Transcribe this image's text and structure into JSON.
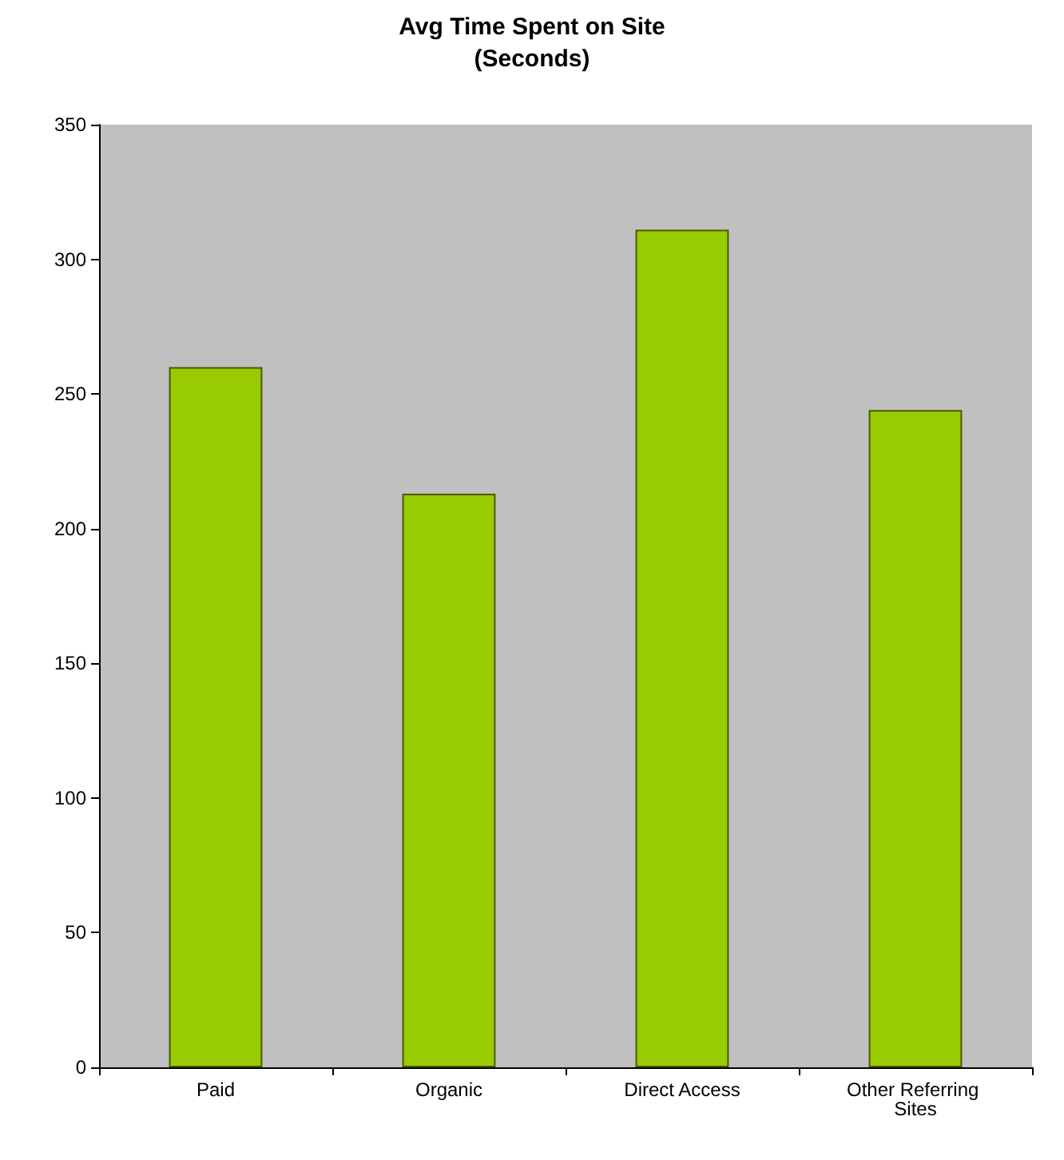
{
  "chart_data": {
    "type": "bar",
    "title": "Avg Time Spent on Site\n(Seconds)",
    "categories": [
      "Paid",
      "Organic",
      "Direct Access",
      "Other Referring Sites"
    ],
    "values": [
      260,
      213,
      311,
      244
    ],
    "color": "#99cc00",
    "ylim": [
      0,
      350
    ],
    "yticks": [
      0,
      50,
      100,
      150,
      200,
      250,
      300,
      350
    ],
    "grid": false
  }
}
